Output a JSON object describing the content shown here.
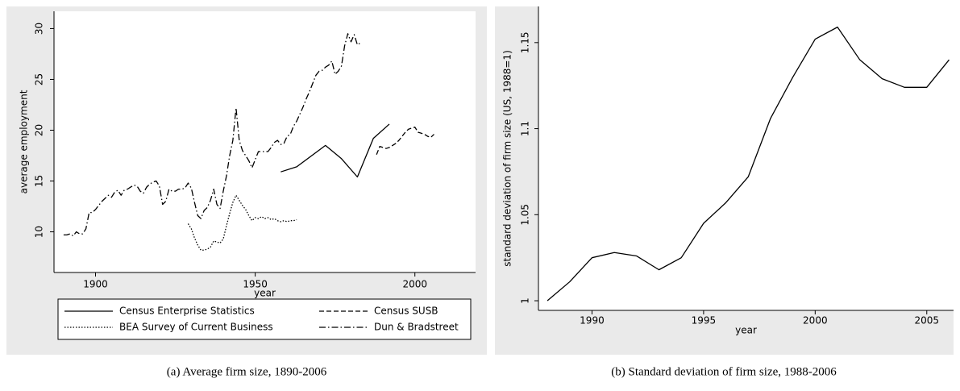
{
  "chart_data": [
    {
      "type": "line",
      "caption": "(a) Average firm size, 1890-2006",
      "xlabel": "year",
      "ylabel": "average employment",
      "xlim": [
        1887,
        2019
      ],
      "ylim": [
        6,
        31.7
      ],
      "xticks": [
        1900,
        1950,
        2000
      ],
      "yticks": [
        10,
        15,
        20,
        25,
        30
      ],
      "legend": "bottom",
      "series": [
        {
          "name": "Census Enterprise Statistics",
          "color": "#000000",
          "dash": "solid",
          "x": [
            1958,
            1963,
            1972,
            1977,
            1982,
            1987,
            1992
          ],
          "values": [
            15.9,
            16.4,
            18.5,
            17.2,
            15.4,
            19.2,
            20.6
          ]
        },
        {
          "name": "Census SUSB",
          "color": "#000000",
          "dash": "dashed",
          "x": [
            1988,
            1989,
            1990,
            1991,
            1992,
            1993,
            1994,
            1995,
            1996,
            1997,
            1998,
            1999,
            2000,
            2001,
            2002,
            2003,
            2004,
            2005,
            2006
          ],
          "values": [
            17.6,
            18.4,
            18.3,
            18.2,
            18.3,
            18.5,
            18.7,
            19.0,
            19.4,
            19.8,
            20.1,
            20.2,
            20.3,
            19.8,
            19.7,
            19.6,
            19.4,
            19.3,
            19.6
          ]
        },
        {
          "name": "BEA Survey of Current Business",
          "color": "#000000",
          "dash": "dotted",
          "x": [
            1929,
            1930,
            1931,
            1932,
            1933,
            1934,
            1935,
            1936,
            1937,
            1938,
            1939,
            1940,
            1941,
            1942,
            1943,
            1944,
            1945,
            1946,
            1947,
            1948,
            1949,
            1950,
            1951,
            1952,
            1953,
            1954,
            1955,
            1956,
            1957,
            1958,
            1959,
            1960,
            1961,
            1962,
            1963
          ],
          "values": [
            10.8,
            10.3,
            9.4,
            8.7,
            8.2,
            8.2,
            8.3,
            8.5,
            9.1,
            9.0,
            8.9,
            9.3,
            10.6,
            11.8,
            12.9,
            13.6,
            13.1,
            12.6,
            12.2,
            11.6,
            11.1,
            11.4,
            11.3,
            11.5,
            11.3,
            11.4,
            11.2,
            11.3,
            11.1,
            11.0,
            11.1,
            11.0,
            11.1,
            11.1,
            11.2
          ]
        },
        {
          "name": "Dun & Bradstreet",
          "color": "#000000",
          "dash": "dashdot",
          "x": [
            1890,
            1891,
            1892,
            1893,
            1894,
            1895,
            1896,
            1897,
            1898,
            1899,
            1900,
            1901,
            1902,
            1903,
            1904,
            1905,
            1906,
            1907,
            1908,
            1909,
            1910,
            1911,
            1912,
            1913,
            1914,
            1915,
            1916,
            1917,
            1918,
            1919,
            1920,
            1921,
            1922,
            1923,
            1924,
            1925,
            1926,
            1927,
            1928,
            1929,
            1930,
            1931,
            1932,
            1933,
            1934,
            1935,
            1936,
            1937,
            1938,
            1939,
            1940,
            1941,
            1942,
            1943,
            1944,
            1945,
            1946,
            1947,
            1948,
            1949,
            1950,
            1951,
            1952,
            1953,
            1954,
            1955,
            1956,
            1957,
            1958,
            1959,
            1960,
            1961,
            1962,
            1963,
            1964,
            1965,
            1966,
            1967,
            1968,
            1969,
            1970,
            1971,
            1972,
            1973,
            1974,
            1975,
            1976,
            1977,
            1978,
            1979,
            1980,
            1981,
            1982,
            1983
          ],
          "values": [
            9.7,
            9.7,
            9.8,
            9.6,
            10.0,
            9.8,
            9.8,
            10.3,
            11.9,
            11.9,
            12.2,
            12.6,
            13.0,
            13.3,
            13.6,
            13.4,
            13.9,
            14.1,
            13.6,
            14.1,
            14.2,
            14.4,
            14.6,
            14.5,
            14.0,
            13.8,
            14.4,
            14.7,
            14.9,
            15.0,
            14.5,
            12.7,
            13.0,
            14.2,
            14.0,
            14.0,
            14.2,
            14.2,
            14.3,
            14.8,
            14.3,
            12.9,
            11.6,
            11.3,
            12.1,
            12.4,
            13.1,
            14.2,
            12.7,
            12.3,
            14.0,
            15.5,
            17.5,
            19.0,
            22.2,
            19.0,
            18.0,
            17.5,
            17.0,
            16.3,
            17.1,
            17.9,
            17.9,
            17.9,
            17.9,
            18.3,
            18.8,
            19.0,
            18.6,
            18.7,
            19.4,
            19.6,
            20.4,
            20.9,
            21.6,
            22.3,
            23.1,
            23.8,
            24.6,
            25.4,
            25.8,
            25.9,
            26.2,
            26.4,
            26.8,
            25.5,
            25.8,
            26.3,
            28.3,
            29.5,
            28.7,
            29.4,
            28.4,
            28.6
          ]
        }
      ]
    },
    {
      "type": "line",
      "caption": "(b) Standard deviation of firm size, 1988-2006",
      "xlabel": "year",
      "ylabel": "standard deviation of firm size (US, 1988=1)",
      "xlim": [
        1987.6,
        2006.2
      ],
      "ylim": [
        0.9944,
        1.171
      ],
      "xticks": [
        1990,
        1995,
        2000,
        2005
      ],
      "yticks": [
        1,
        1.05,
        1.1,
        1.15
      ],
      "series": [
        {
          "color": "#000000",
          "dash": "solid",
          "x": [
            1988,
            1989,
            1990,
            1991,
            1992,
            1993,
            1994,
            1995,
            1996,
            1997,
            1998,
            1999,
            2000,
            2001,
            2002,
            2003,
            2004,
            2005,
            2006
          ],
          "values": [
            1.0,
            1.011,
            1.025,
            1.028,
            1.026,
            1.018,
            1.025,
            1.045,
            1.057,
            1.072,
            1.106,
            1.13,
            1.152,
            1.159,
            1.14,
            1.129,
            1.124,
            1.124,
            1.14
          ]
        }
      ]
    }
  ]
}
